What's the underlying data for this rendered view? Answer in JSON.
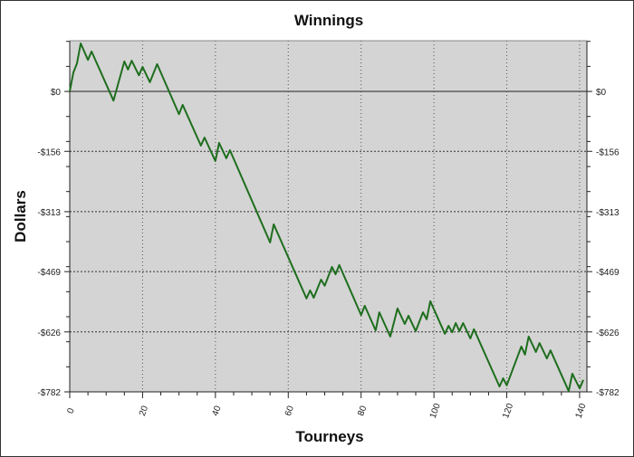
{
  "chart_data": {
    "type": "line",
    "title": "Winnings",
    "xlabel": "Tourneys",
    "ylabel": "Dollars",
    "xlim": [
      0,
      142
    ],
    "ylim": [
      -782,
      132
    ],
    "xticks": [
      0,
      20,
      40,
      60,
      80,
      100,
      120,
      140
    ],
    "yticks": [
      0,
      -156,
      -313,
      -469,
      -626,
      -782
    ],
    "ytick_labels": [
      "$0",
      "-$156",
      "-$313",
      "-$469",
      "-$626",
      "-$782"
    ],
    "grid": true,
    "plot_background": "#d4d4d4",
    "line_color": "#1e6e1e",
    "series": [
      {
        "x": [
          0,
          1,
          2,
          3,
          5,
          6,
          12,
          15,
          16,
          17,
          19,
          20,
          22,
          24,
          30,
          31,
          36,
          37,
          40,
          41,
          43,
          44,
          55,
          56,
          65,
          66,
          67,
          69,
          70,
          72,
          73,
          74,
          80,
          81,
          84,
          85,
          88,
          90,
          92,
          93,
          95,
          97,
          98,
          99,
          103,
          104,
          105,
          106,
          107,
          108,
          110,
          111,
          118,
          119,
          120,
          124,
          125,
          126,
          128,
          129,
          131,
          132,
          137,
          138,
          140,
          141
        ],
        "y": [
          0,
          49,
          73,
          125,
          82,
          104,
          -24,
          78,
          57,
          80,
          42,
          64,
          24,
          71,
          -59,
          -35,
          -141,
          -120,
          -181,
          -134,
          -174,
          -153,
          -393,
          -346,
          -539,
          -518,
          -537,
          -490,
          -506,
          -457,
          -476,
          -452,
          -582,
          -558,
          -622,
          -575,
          -638,
          -565,
          -605,
          -584,
          -624,
          -575,
          -593,
          -546,
          -631,
          -610,
          -627,
          -603,
          -624,
          -603,
          -643,
          -619,
          -768,
          -747,
          -765,
          -664,
          -685,
          -638,
          -678,
          -655,
          -695,
          -674,
          -780,
          -735,
          -773,
          -751
        ]
      }
    ]
  }
}
